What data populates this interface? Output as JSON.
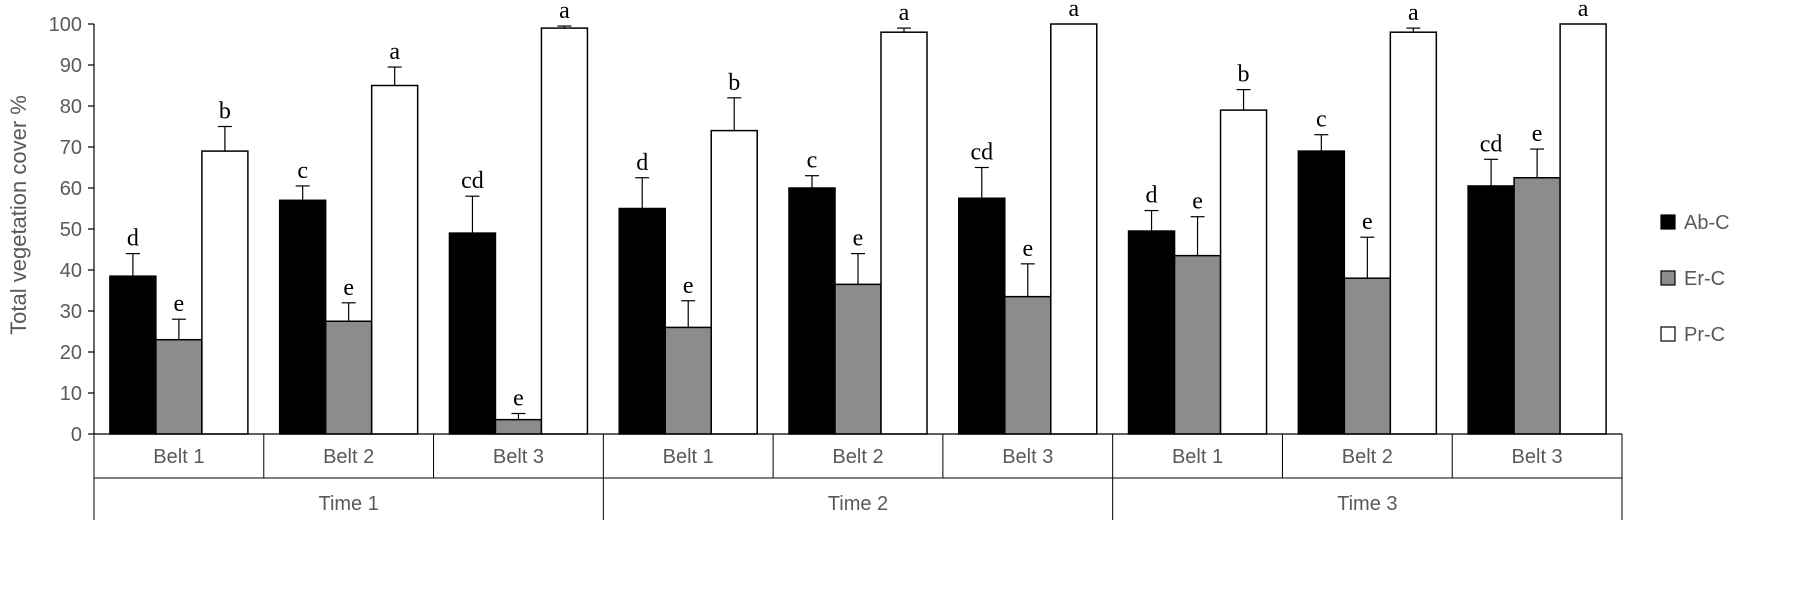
{
  "chart_data": {
    "type": "bar",
    "ylabel": "Total vegetation cover %",
    "ylim": [
      0,
      100
    ],
    "yticks": [
      0,
      10,
      20,
      30,
      40,
      50,
      60,
      70,
      80,
      90,
      100
    ],
    "groups": [
      {
        "label": "Time 1",
        "categories": [
          "Belt 1",
          "Belt 2",
          "Belt 3"
        ]
      },
      {
        "label": "Time 2",
        "categories": [
          "Belt 1",
          "Belt 2",
          "Belt 3"
        ]
      },
      {
        "label": "Time 3",
        "categories": [
          "Belt 1",
          "Belt 2",
          "Belt 3"
        ]
      }
    ],
    "categories": [
      "Belt 1",
      "Belt 2",
      "Belt 3",
      "Belt 1",
      "Belt 2",
      "Belt 3",
      "Belt 1",
      "Belt 2",
      "Belt 3"
    ],
    "series": [
      {
        "name": "Ab-C",
        "color": "#000000",
        "values": [
          38.5,
          57,
          49,
          55,
          60,
          57.5,
          49.5,
          69,
          60.5
        ],
        "errors": [
          5.5,
          3.5,
          9,
          7.5,
          3,
          7.5,
          5,
          4,
          6.5
        ],
        "letters": [
          "d",
          "c",
          "cd",
          "d",
          "c",
          "cd",
          "d",
          "c",
          "cd"
        ]
      },
      {
        "name": "Er-C",
        "color": "#8c8c8c",
        "values": [
          23,
          27.5,
          3.5,
          26,
          36.5,
          33.5,
          43.5,
          38,
          62.5
        ],
        "errors": [
          5,
          4.5,
          1.5,
          6.5,
          7.5,
          8,
          9.5,
          10,
          7
        ],
        "letters": [
          "e",
          "e",
          "e",
          "e",
          "e",
          "e",
          "e",
          "e",
          "e"
        ]
      },
      {
        "name": "Pr-C",
        "color": "#ffffff",
        "values": [
          69,
          85,
          99,
          74,
          98,
          100,
          79,
          98,
          100
        ],
        "errors": [
          6,
          4.5,
          0.5,
          8,
          1,
          0,
          5,
          1,
          0
        ],
        "letters": [
          "b",
          "a",
          "a",
          "b",
          "a",
          "a",
          "b",
          "a",
          "a"
        ]
      }
    ],
    "legend_position": "right",
    "grid": false
  }
}
